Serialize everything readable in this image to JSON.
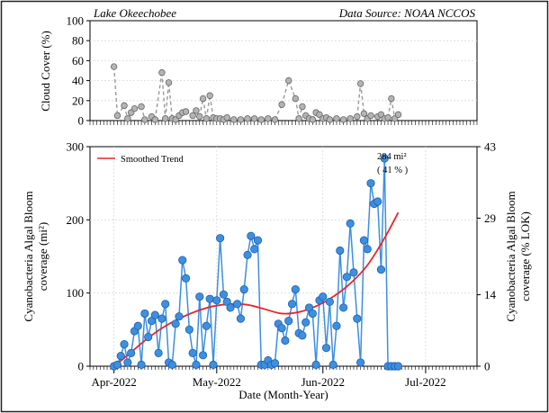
{
  "chart_data": [
    {
      "type": "scatter",
      "header_left": "Lake Okeechobee",
      "header_right": "Data Source: NOAA NCCOS",
      "ylabel": "Cloud Cover (%)",
      "ylim": [
        0,
        100
      ],
      "yticks": [
        "0",
        "20",
        "40",
        "60",
        "80",
        "100"
      ],
      "grid": true,
      "colors": {
        "point": "#b4b4b4",
        "line": "#9a9a9a"
      },
      "series": [
        {
          "x": [
            "2022-04-01",
            "2022-04-02",
            "2022-04-04",
            "2022-04-05",
            "2022-04-06",
            "2022-04-07",
            "2022-04-09",
            "2022-04-10",
            "2022-04-12",
            "2022-04-13",
            "2022-04-15",
            "2022-04-16",
            "2022-04-17",
            "2022-04-18",
            "2022-04-19",
            "2022-04-20",
            "2022-04-21",
            "2022-04-22",
            "2022-04-24",
            "2022-04-25",
            "2022-04-26",
            "2022-04-27",
            "2022-04-28",
            "2022-04-29",
            "2022-04-30",
            "2022-05-01",
            "2022-05-02",
            "2022-05-03",
            "2022-05-04",
            "2022-05-06",
            "2022-05-08",
            "2022-05-10",
            "2022-05-12",
            "2022-05-14",
            "2022-05-16",
            "2022-05-18",
            "2022-05-20",
            "2022-05-22",
            "2022-05-24",
            "2022-05-25",
            "2022-05-26",
            "2022-05-27",
            "2022-05-28",
            "2022-05-29",
            "2022-05-30",
            "2022-05-31",
            "2022-06-01",
            "2022-06-02",
            "2022-06-03",
            "2022-06-05",
            "2022-06-07",
            "2022-06-09",
            "2022-06-11",
            "2022-06-12",
            "2022-06-13",
            "2022-06-14",
            "2022-06-15",
            "2022-06-17",
            "2022-06-18",
            "2022-06-19",
            "2022-06-20",
            "2022-06-21",
            "2022-06-22",
            "2022-06-23"
          ],
          "y": [
            54,
            5,
            15,
            2,
            8,
            12,
            14,
            1,
            4,
            1,
            48,
            2,
            38,
            2,
            1,
            5,
            8,
            9,
            5,
            10,
            4,
            22,
            2,
            25,
            3,
            2,
            2,
            1,
            3,
            1,
            1,
            2,
            2,
            1,
            2,
            1,
            16,
            40,
            22,
            2,
            14,
            5,
            2,
            1,
            8,
            6,
            2,
            3,
            1,
            2,
            1,
            2,
            4,
            37,
            7,
            2,
            5,
            4,
            6,
            2,
            3,
            22,
            2,
            6
          ]
        }
      ]
    },
    {
      "type": "line",
      "xlabel": "Date (Month-Year)",
      "ylabel": "Cyanobacteria Algal Bloom coverage (mi²)",
      "ylabel_lines": [
        "Cyanobacteria Algal Bloom",
        "coverage (mi²)"
      ],
      "y2label_lines": [
        "Cyanobacteria Algal Bloom",
        "coverage (% LOK)"
      ],
      "ylim": [
        0,
        300
      ],
      "y2lim": [
        0,
        43
      ],
      "yticks": [
        "0",
        "100",
        "200",
        "300"
      ],
      "y2ticks": [
        "0",
        "14",
        "29",
        "43"
      ],
      "xlim": [
        "2022-03-25",
        "2022-07-16"
      ],
      "xticks": [
        {
          "date": "2022-04-01",
          "label": "Apr-2022"
        },
        {
          "date": "2022-05-01",
          "label": "May-2022"
        },
        {
          "date": "2022-06-01",
          "label": "Jun-2022"
        },
        {
          "date": "2022-07-01",
          "label": "Jul-2022"
        }
      ],
      "grid": true,
      "legend": {
        "position": "top-left",
        "label": "Smoothed Trend"
      },
      "annotation": {
        "line1": "284 mi²",
        "line2": "( 41 % )"
      },
      "colors": {
        "points": "#3d8fe0",
        "outline": "#1f5fae",
        "line": "#3d8fe0",
        "trend": "#e8262a"
      },
      "series": [
        {
          "name": "",
          "x": [
            "2022-04-01",
            "2022-04-02",
            "2022-04-03",
            "2022-04-04",
            "2022-04-05",
            "2022-04-06",
            "2022-04-07",
            "2022-04-08",
            "2022-04-09",
            "2022-04-10",
            "2022-04-11",
            "2022-04-12",
            "2022-04-13",
            "2022-04-14",
            "2022-04-15",
            "2022-04-16",
            "2022-04-17",
            "2022-04-18",
            "2022-04-19",
            "2022-04-20",
            "2022-04-21",
            "2022-04-22",
            "2022-04-23",
            "2022-04-24",
            "2022-04-25",
            "2022-04-26",
            "2022-04-27",
            "2022-04-28",
            "2022-04-29",
            "2022-04-30",
            "2022-05-01",
            "2022-05-02",
            "2022-05-03",
            "2022-05-04",
            "2022-05-05",
            "2022-05-07",
            "2022-05-08",
            "2022-05-09",
            "2022-05-10",
            "2022-05-11",
            "2022-05-12",
            "2022-05-13",
            "2022-05-14",
            "2022-05-15",
            "2022-05-16",
            "2022-05-17",
            "2022-05-18",
            "2022-05-19",
            "2022-05-20",
            "2022-05-21",
            "2022-05-22",
            "2022-05-23",
            "2022-05-24",
            "2022-05-25",
            "2022-05-26",
            "2022-05-27",
            "2022-05-28",
            "2022-05-29",
            "2022-05-30",
            "2022-05-31",
            "2022-06-01",
            "2022-06-02",
            "2022-06-03",
            "2022-06-04",
            "2022-06-05",
            "2022-06-06",
            "2022-06-07",
            "2022-06-08",
            "2022-06-09",
            "2022-06-10",
            "2022-06-11",
            "2022-06-12",
            "2022-06-13",
            "2022-06-14",
            "2022-06-15",
            "2022-06-16",
            "2022-06-17",
            "2022-06-18",
            "2022-06-19",
            "2022-06-20",
            "2022-06-21",
            "2022-06-22",
            "2022-06-23"
          ],
          "y": [
            0,
            2,
            14,
            30,
            5,
            18,
            48,
            55,
            2,
            72,
            40,
            62,
            70,
            18,
            65,
            85,
            5,
            2,
            58,
            68,
            145,
            120,
            50,
            18,
            2,
            95,
            15,
            55,
            92,
            2,
            90,
            175,
            98,
            88,
            80,
            85,
            65,
            105,
            152,
            178,
            160,
            172,
            2,
            2,
            8,
            2,
            4,
            58,
            52,
            35,
            62,
            85,
            105,
            45,
            42,
            60,
            80,
            72,
            2,
            90,
            95,
            25,
            88,
            2,
            55,
            158,
            80,
            122,
            195,
            128,
            65,
            5,
            172,
            160,
            250,
            222,
            225,
            132,
            284,
            0,
            0,
            0,
            0
          ]
        }
      ],
      "trend": {
        "name": "Smoothed Trend",
        "x": [
          "2022-04-01",
          "2022-04-05",
          "2022-04-10",
          "2022-04-15",
          "2022-04-20",
          "2022-04-25",
          "2022-04-30",
          "2022-05-05",
          "2022-05-10",
          "2022-05-15",
          "2022-05-20",
          "2022-05-25",
          "2022-05-30",
          "2022-06-04",
          "2022-06-09",
          "2022-06-14",
          "2022-06-19",
          "2022-06-23"
        ],
        "y": [
          0,
          15,
          35,
          52,
          65,
          75,
          82,
          85,
          84,
          78,
          72,
          74,
          82,
          95,
          113,
          138,
          175,
          210
        ]
      }
    }
  ]
}
